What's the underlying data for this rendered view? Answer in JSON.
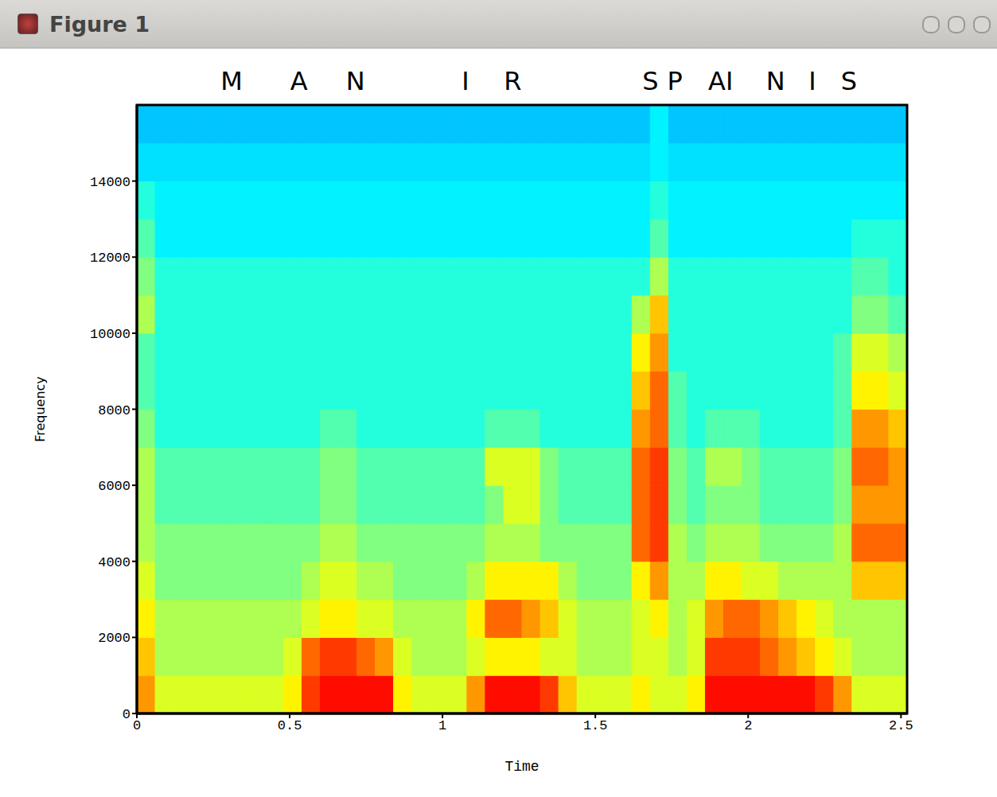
{
  "window": {
    "title": "Figure 1"
  },
  "chart_data": {
    "type": "heatmap",
    "x_label": "Time",
    "y_label": "Frequency",
    "color": "jet",
    "annotations": [
      {
        "text": "M",
        "x": 0.31
      },
      {
        "text": "A",
        "x": 0.53
      },
      {
        "text": "N",
        "x": 0.715
      },
      {
        "text": "I",
        "x": 1.075
      },
      {
        "text": "R",
        "x": 1.23
      },
      {
        "text": "S",
        "x": 1.68
      },
      {
        "text": "P",
        "x": 1.76
      },
      {
        "text": "AI",
        "x": 1.91
      },
      {
        "text": "N",
        "x": 2.09
      },
      {
        "text": "I",
        "x": 2.21
      },
      {
        "text": "S",
        "x": 2.33
      }
    ],
    "xlim": [
      0,
      2.52
    ],
    "ylim": [
      0,
      16000
    ],
    "xticks": [
      0,
      0.5,
      1,
      1.5,
      2,
      2.5
    ],
    "yticks": [
      0,
      2000,
      4000,
      6000,
      8000,
      10000,
      12000,
      14000
    ],
    "x_step": 0.06,
    "y_step": 1000,
    "value_range": [
      0,
      11
    ],
    "cells": [
      [
        8,
        6.5,
        6.5,
        6.5,
        6.5,
        6.5,
        6.5,
        6.5,
        7,
        9,
        9.5,
        9.5,
        9.5,
        9.5,
        7,
        6.5,
        6.5,
        6.5,
        8,
        9.5,
        9.5,
        9.5,
        9,
        7.5,
        6.5,
        6.5,
        6.5,
        7,
        6.5,
        6.5,
        7,
        9.5,
        9.5,
        9.5,
        9.5,
        9.5,
        9.5,
        9,
        8,
        6.5,
        6.5,
        6.5
      ],
      [
        7.5,
        6,
        6,
        6,
        6,
        6,
        6,
        6,
        6.5,
        8.5,
        9,
        9,
        8.5,
        8,
        6.5,
        6,
        6,
        6,
        6.5,
        7,
        7,
        7,
        6.5,
        6.5,
        6,
        6,
        6,
        6.5,
        6.5,
        6,
        6.5,
        9,
        9,
        9,
        8.5,
        8,
        7.5,
        7,
        6.5,
        6,
        6,
        6
      ],
      [
        7,
        6,
        6,
        6,
        6,
        6,
        6,
        6,
        6,
        6.5,
        7,
        7,
        6.5,
        6.5,
        6,
        6,
        6,
        6,
        7,
        8.5,
        8.5,
        8,
        7.5,
        6.5,
        6,
        6,
        6,
        6.5,
        7,
        6,
        6.5,
        8,
        8.5,
        8.5,
        8,
        7.5,
        7,
        6.5,
        6,
        6,
        6,
        6
      ],
      [
        6.5,
        5.5,
        5.5,
        5.5,
        5.5,
        5.5,
        5.5,
        5.5,
        5.5,
        6,
        6.5,
        6.5,
        6,
        6,
        5.5,
        5.5,
        5.5,
        5.5,
        6,
        7,
        7,
        7,
        7,
        6,
        5.5,
        5.5,
        5.5,
        7,
        8,
        6,
        6,
        7,
        7,
        6.5,
        6.5,
        6,
        6,
        6,
        6,
        7.5,
        7.5,
        7.5
      ],
      [
        6,
        5.5,
        5.5,
        5.5,
        5.5,
        5.5,
        5.5,
        5.5,
        5.5,
        5.5,
        6,
        6,
        5.5,
        5.5,
        5.5,
        5.5,
        5.5,
        5.5,
        5.5,
        6,
        6,
        6,
        5.5,
        5.5,
        5.5,
        5.5,
        5.5,
        8.5,
        9,
        6,
        5.5,
        6,
        6,
        6,
        5.5,
        5.5,
        5.5,
        5.5,
        6,
        8.5,
        8.5,
        8.5
      ],
      [
        6,
        5,
        5,
        5,
        5,
        5,
        5,
        5,
        5,
        5,
        5.5,
        5.5,
        5,
        5,
        5,
        5,
        5,
        5,
        5,
        5.5,
        6.5,
        6.5,
        5.5,
        5,
        5,
        5,
        5,
        8.5,
        9,
        5.5,
        5,
        5.5,
        5.5,
        5.5,
        5,
        5,
        5,
        5,
        5.5,
        8,
        8,
        8
      ],
      [
        6,
        5,
        5,
        5,
        5,
        5,
        5,
        5,
        5,
        5,
        5.5,
        5.5,
        5,
        5,
        5,
        5,
        5,
        5,
        5,
        6.5,
        6.5,
        6.5,
        5.5,
        5,
        5,
        5,
        5,
        8.5,
        9,
        5.5,
        5,
        6,
        6,
        5.5,
        5,
        5,
        5,
        5,
        5.5,
        8.5,
        8.5,
        8
      ],
      [
        5.5,
        4.5,
        4.5,
        4.5,
        4.5,
        4.5,
        4.5,
        4.5,
        4.5,
        4.5,
        5,
        5,
        4.5,
        4.5,
        4.5,
        4.5,
        4.5,
        4.5,
        4.5,
        5,
        5,
        5,
        4.5,
        4.5,
        4.5,
        4.5,
        4.5,
        8,
        8.5,
        5,
        4.5,
        5,
        5,
        5,
        4.5,
        4.5,
        4.5,
        4.5,
        5,
        8,
        8,
        7.5
      ],
      [
        5,
        4.5,
        4.5,
        4.5,
        4.5,
        4.5,
        4.5,
        4.5,
        4.5,
        4.5,
        4.5,
        4.5,
        4.5,
        4.5,
        4.5,
        4.5,
        4.5,
        4.5,
        4.5,
        4.5,
        4.5,
        4.5,
        4.5,
        4.5,
        4.5,
        4.5,
        4.5,
        7.5,
        8.5,
        5,
        4.5,
        4.5,
        4.5,
        4.5,
        4.5,
        4.5,
        4.5,
        4.5,
        5,
        7,
        7,
        6.5
      ],
      [
        5,
        4.5,
        4.5,
        4.5,
        4.5,
        4.5,
        4.5,
        4.5,
        4.5,
        4.5,
        4.5,
        4.5,
        4.5,
        4.5,
        4.5,
        4.5,
        4.5,
        4.5,
        4.5,
        4.5,
        4.5,
        4.5,
        4.5,
        4.5,
        4.5,
        4.5,
        4.5,
        7,
        8,
        4.5,
        4.5,
        4.5,
        4.5,
        4.5,
        4.5,
        4.5,
        4.5,
        4.5,
        5,
        6.5,
        6.5,
        6
      ],
      [
        6,
        4.5,
        4.5,
        4.5,
        4.5,
        4.5,
        4.5,
        4.5,
        4.5,
        4.5,
        4.5,
        4.5,
        4.5,
        4.5,
        4.5,
        4.5,
        4.5,
        4.5,
        4.5,
        4.5,
        4.5,
        4.5,
        4.5,
        4.5,
        4.5,
        4.5,
        4.5,
        6,
        7.5,
        4.5,
        4.5,
        4.5,
        4.5,
        4.5,
        4.5,
        4.5,
        4.5,
        4.5,
        4.5,
        5.5,
        5.5,
        5
      ],
      [
        5.5,
        4.5,
        4.5,
        4.5,
        4.5,
        4.5,
        4.5,
        4.5,
        4.5,
        4.5,
        4.5,
        4.5,
        4.5,
        4.5,
        4.5,
        4.5,
        4.5,
        4.5,
        4.5,
        4.5,
        4.5,
        4.5,
        4.5,
        4.5,
        4.5,
        4.5,
        4.5,
        4.5,
        6,
        4.5,
        4.5,
        4.5,
        4.5,
        4.5,
        4.5,
        4.5,
        4.5,
        4.5,
        4.5,
        5,
        5,
        4.5
      ],
      [
        5,
        4,
        4,
        4,
        4,
        4,
        4,
        4,
        4,
        4,
        4,
        4,
        4,
        4,
        4,
        4,
        4,
        4,
        4,
        4,
        4,
        4,
        4,
        4,
        4,
        4,
        4,
        4,
        5,
        4,
        4,
        4,
        4,
        4,
        4,
        4,
        4,
        4,
        4,
        4.5,
        4.5,
        4.5
      ],
      [
        4.5,
        4,
        4,
        4,
        4,
        4,
        4,
        4,
        4,
        4,
        4,
        4,
        4,
        4,
        4,
        4,
        4,
        4,
        4,
        4,
        4,
        4,
        4,
        4,
        4,
        4,
        4,
        4,
        4.5,
        4,
        4,
        4,
        4,
        4,
        4,
        4,
        4,
        4,
        4,
        4,
        4,
        4
      ],
      [
        3.8,
        3.8,
        3.8,
        3.8,
        3.8,
        3.8,
        3.8,
        3.8,
        3.8,
        3.8,
        3.8,
        3.8,
        3.8,
        3.8,
        3.8,
        3.8,
        3.8,
        3.8,
        3.8,
        3.8,
        3.8,
        3.8,
        3.8,
        3.8,
        3.8,
        3.8,
        3.8,
        3.8,
        4,
        3.8,
        3.8,
        3.8,
        3.8,
        3.8,
        3.8,
        3.8,
        3.8,
        3.8,
        3.8,
        3.8,
        3.8,
        3.8
      ],
      [
        3.5,
        3.5,
        3.5,
        3.5,
        3.5,
        3.5,
        3.5,
        3.5,
        3.5,
        3.5,
        3.5,
        3.5,
        3.5,
        3.5,
        3.5,
        3.5,
        3.5,
        3.5,
        3.5,
        3.5,
        3.5,
        3.5,
        3.5,
        3.5,
        3.5,
        3.5,
        3.5,
        3.5,
        4,
        3.5,
        3.5,
        3.5,
        3.5,
        3.5,
        3.5,
        3.5,
        3.5,
        3.5,
        3.5,
        3.5,
        3.5,
        3.5
      ]
    ]
  }
}
